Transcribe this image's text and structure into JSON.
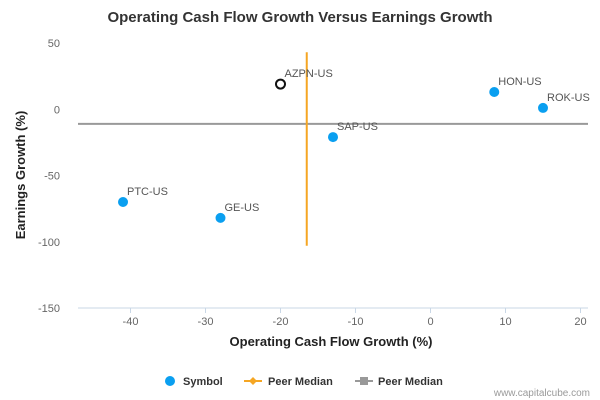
{
  "chart_data": {
    "type": "scatter",
    "title": "Operating Cash Flow Growth Versus Earnings Growth",
    "xlabel": "Operating Cash Flow Growth (%)",
    "ylabel": "Earnings Growth (%)",
    "xlim": [
      -47,
      21
    ],
    "ylim": [
      -150,
      50
    ],
    "xticks": [
      -40,
      -30,
      -20,
      -10,
      0,
      10,
      20
    ],
    "yticks": [
      50,
      0,
      -50,
      -100,
      -150
    ],
    "points": [
      {
        "label": "AZPN-US",
        "x": -20,
        "y": 19,
        "highlight": true
      },
      {
        "label": "HON-US",
        "x": 8.5,
        "y": 13,
        "highlight": false
      },
      {
        "label": "ROK-US",
        "x": 15,
        "y": 1,
        "highlight": false
      },
      {
        "label": "SAP-US",
        "x": -13,
        "y": -21,
        "highlight": false
      },
      {
        "label": "PTC-US",
        "x": -41,
        "y": -70,
        "highlight": false
      },
      {
        "label": "GE-US",
        "x": -28,
        "y": -82,
        "highlight": false
      }
    ],
    "peer_median_x": {
      "name": "Peer Median",
      "value": -16.5,
      "y_range": [
        -103,
        43
      ],
      "color": "#f5a623"
    },
    "peer_median_y": {
      "name": "Peer Median",
      "value": -11,
      "color": "#999999"
    },
    "legend": [
      {
        "name": "Symbol",
        "marker": "circle",
        "color": "#0a9ff0"
      },
      {
        "name": "Peer Median",
        "marker": "diamond-line",
        "color": "#f5a623"
      },
      {
        "name": "Peer Median",
        "marker": "square-line",
        "color": "#999999"
      }
    ],
    "legend_position": "bottom",
    "grid": false,
    "colors": {
      "symbol": "#0a9ff0",
      "highlight_stroke": "#111111"
    }
  },
  "watermark": "www.capitalcube.com"
}
